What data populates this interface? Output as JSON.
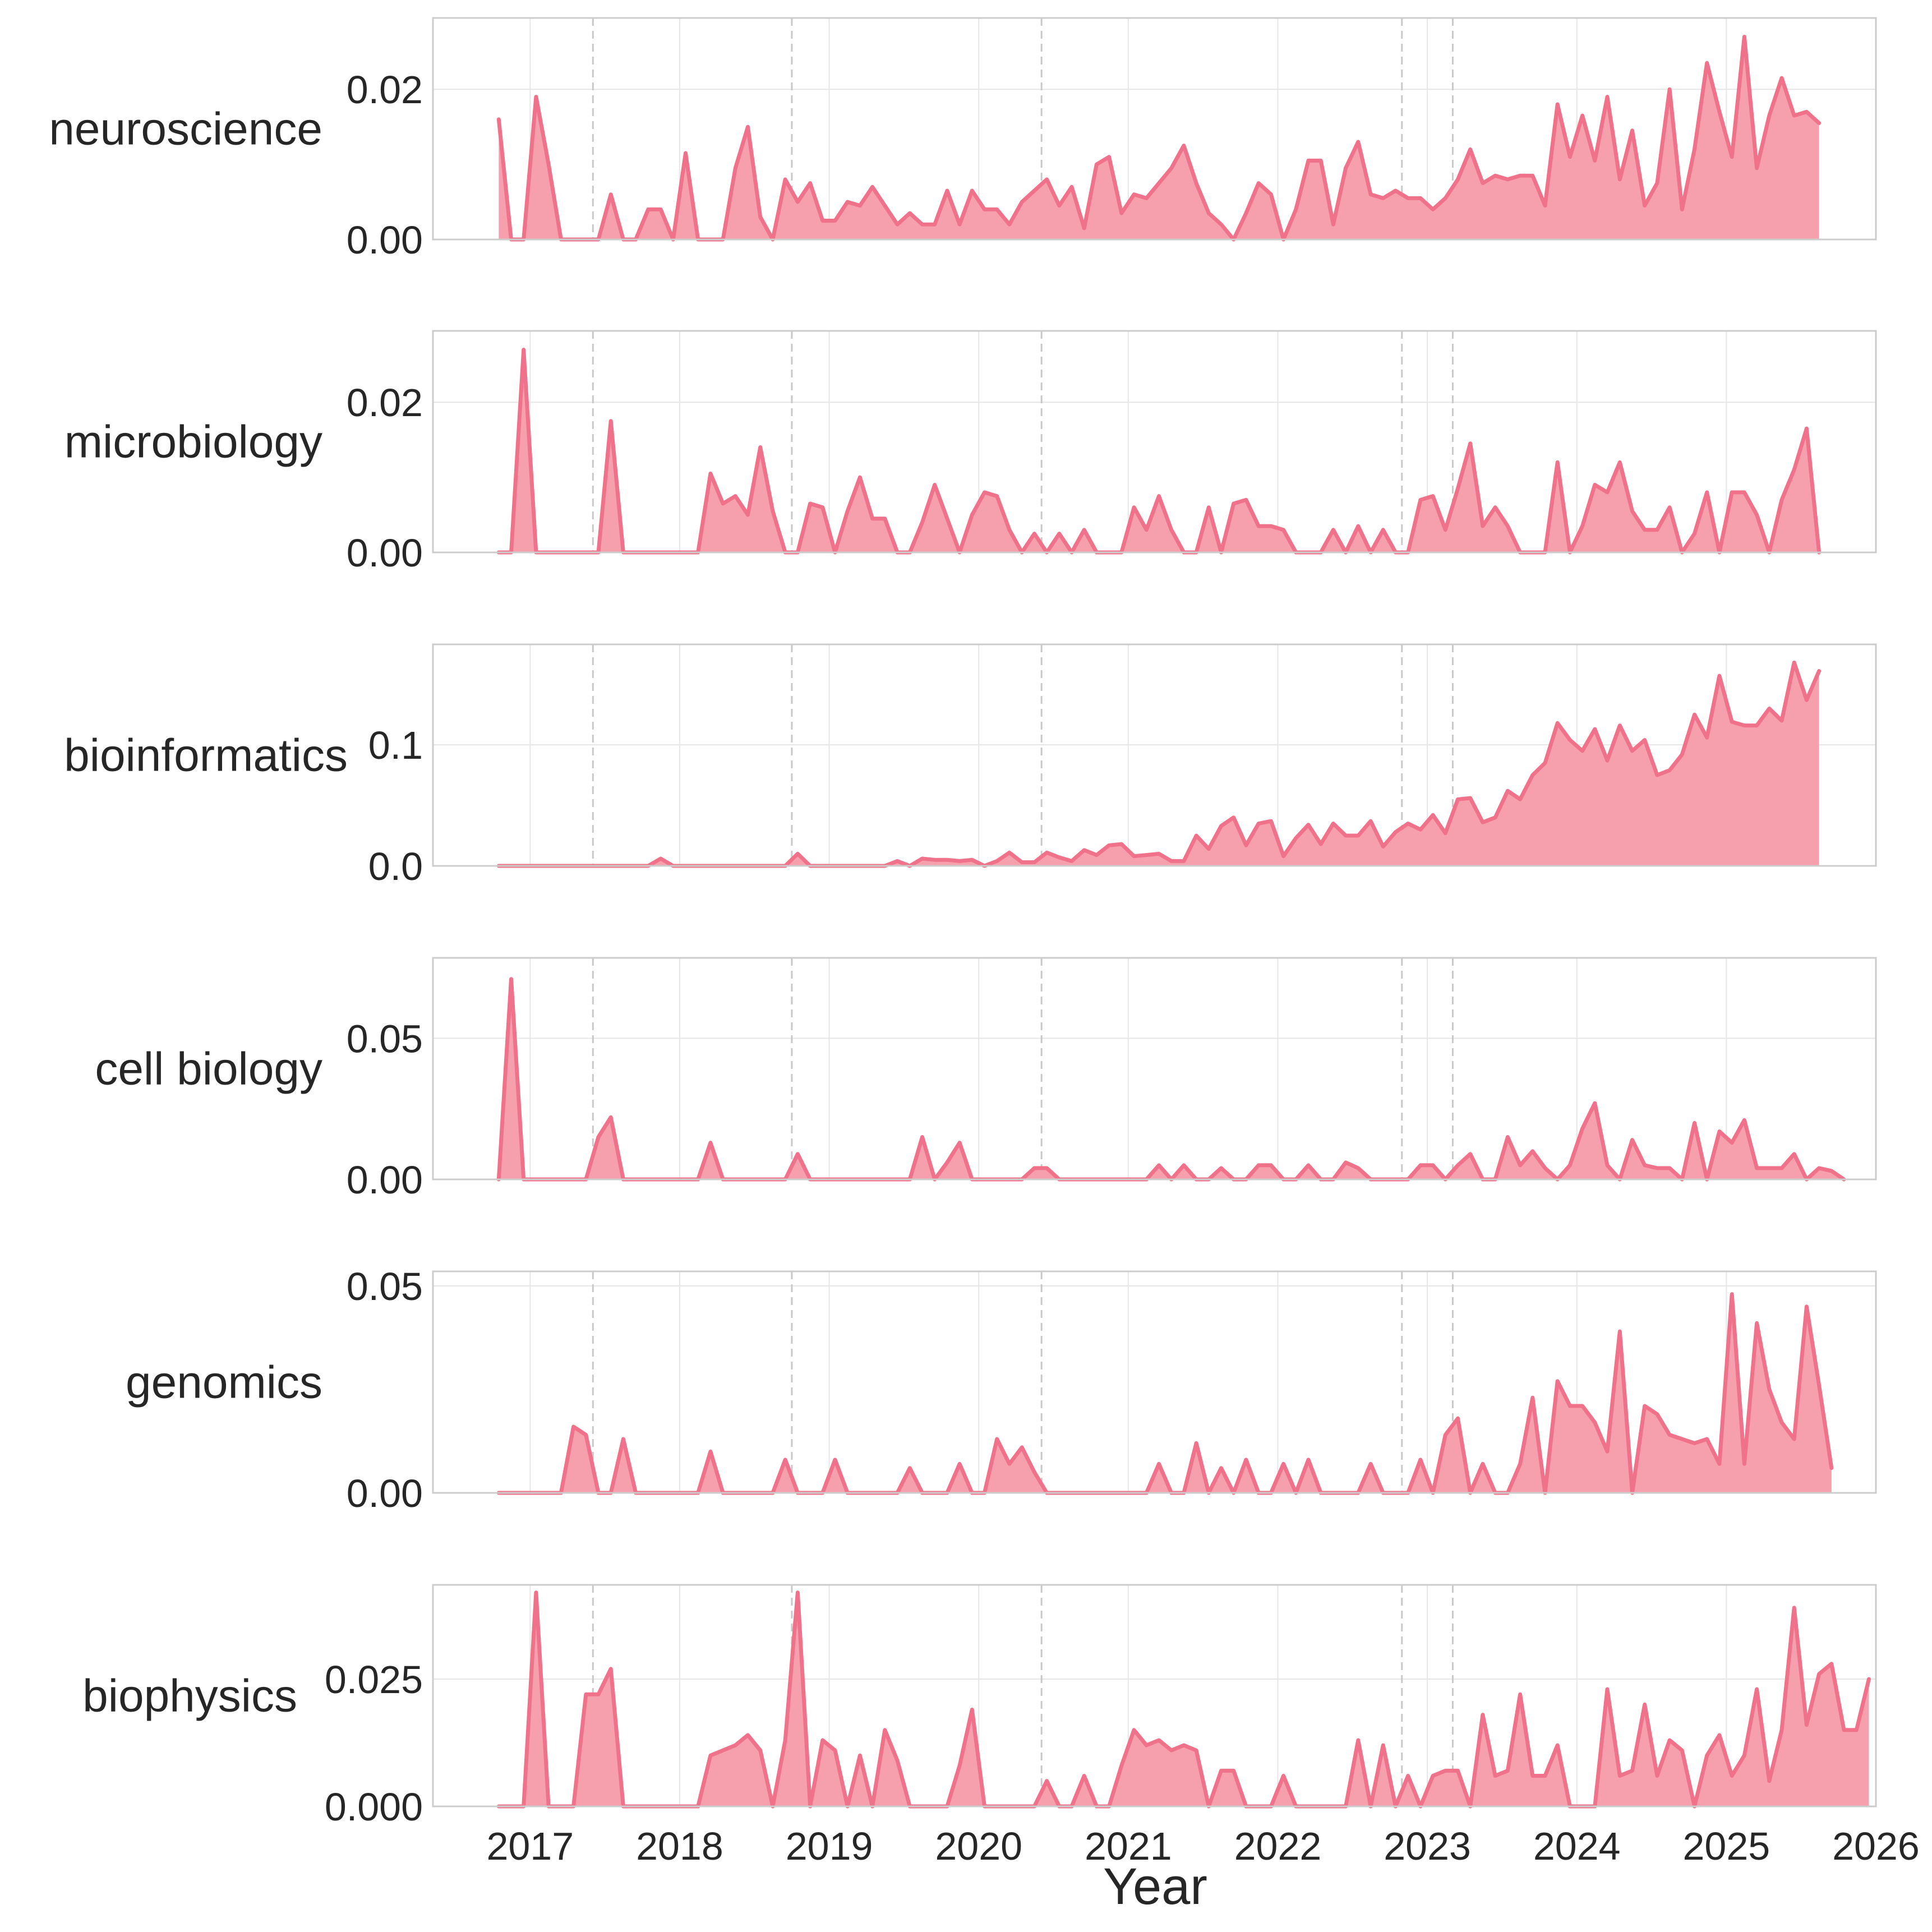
{
  "chart_data": {
    "type": "area",
    "xlabel": "Year",
    "x_range": [
      2016.35,
      2026.0
    ],
    "x_ticks": [
      2017,
      2018,
      2019,
      2020,
      2021,
      2022,
      2023,
      2024,
      2025,
      2026
    ],
    "event_lines": [
      2017.42,
      2018.75,
      2020.42,
      2022.83,
      2023.17
    ],
    "x_start": 2016.79,
    "x_step": 0.0833,
    "colors": {
      "line": "#f0728a",
      "fill": "#f7a0ad"
    },
    "panels": [
      {
        "label": "neuroscience",
        "ylim": [
          0,
          0.0295
        ],
        "y_ticks": [
          0.0,
          0.02
        ],
        "y_tick_labels": [
          "0.00",
          "0.02"
        ],
        "values": [
          0.016,
          0.0,
          0.0,
          0.019,
          0.01,
          0.0,
          0.0,
          0.0,
          0.0,
          0.006,
          0.0,
          0.0,
          0.004,
          0.004,
          0.0,
          0.0115,
          0.0,
          0.0,
          0.0,
          0.0095,
          0.015,
          0.003,
          0.0,
          0.008,
          0.005,
          0.0075,
          0.0025,
          0.0025,
          0.005,
          0.0045,
          0.007,
          0.0045,
          0.002,
          0.0035,
          0.002,
          0.002,
          0.0065,
          0.002,
          0.0065,
          0.004,
          0.004,
          0.002,
          0.005,
          0.0065,
          0.008,
          0.0045,
          0.007,
          0.0015,
          0.01,
          0.011,
          0.0035,
          0.006,
          0.0055,
          0.0075,
          0.0095,
          0.0125,
          0.0075,
          0.0035,
          0.002,
          0.0,
          0.0035,
          0.0075,
          0.006,
          0.0,
          0.004,
          0.0105,
          0.0105,
          0.002,
          0.0095,
          0.013,
          0.006,
          0.0055,
          0.0065,
          0.0055,
          0.0055,
          0.004,
          0.0055,
          0.008,
          0.012,
          0.0075,
          0.0085,
          0.008,
          0.0085,
          0.0085,
          0.0045,
          0.018,
          0.011,
          0.0165,
          0.0105,
          0.019,
          0.008,
          0.0145,
          0.0045,
          0.0075,
          0.02,
          0.004,
          0.012,
          0.0235,
          0.017,
          0.011,
          0.027,
          0.0095,
          0.0165,
          0.0215,
          0.0165,
          0.017,
          0.0155
        ]
      },
      {
        "label": "microbiology",
        "ylim": [
          0,
          0.0295
        ],
        "y_ticks": [
          0.0,
          0.02
        ],
        "y_tick_labels": [
          "0.00",
          "0.02"
        ],
        "values": [
          0.0,
          0.0,
          0.027,
          0.0,
          0.0,
          0.0,
          0.0,
          0.0,
          0.0,
          0.0175,
          0.0,
          0.0,
          0.0,
          0.0,
          0.0,
          0.0,
          0.0,
          0.0105,
          0.0065,
          0.0075,
          0.005,
          0.014,
          0.0055,
          0.0,
          0.0,
          0.0065,
          0.006,
          0.0,
          0.0055,
          0.01,
          0.0045,
          0.0045,
          0.0,
          0.0,
          0.004,
          0.009,
          0.0045,
          0.0,
          0.005,
          0.008,
          0.0075,
          0.003,
          0.0,
          0.0025,
          0.0,
          0.0025,
          0.0,
          0.003,
          0.0,
          0.0,
          0.0,
          0.006,
          0.003,
          0.0075,
          0.003,
          0.0,
          0.0,
          0.006,
          0.0,
          0.0065,
          0.007,
          0.0035,
          0.0035,
          0.003,
          0.0,
          0.0,
          0.0,
          0.003,
          0.0,
          0.0035,
          0.0,
          0.003,
          0.0,
          0.0,
          0.007,
          0.0075,
          0.003,
          0.0085,
          0.0145,
          0.0035,
          0.006,
          0.0035,
          0.0,
          0.0,
          0.0,
          0.012,
          0.0,
          0.0035,
          0.009,
          0.008,
          0.012,
          0.0055,
          0.003,
          0.003,
          0.006,
          0.0,
          0.0025,
          0.008,
          0.0,
          0.008,
          0.008,
          0.005,
          0.0,
          0.007,
          0.011,
          0.0165,
          0.0
        ]
      },
      {
        "label": "bioinformatics",
        "ylim": [
          0,
          0.183
        ],
        "y_ticks": [
          0.0,
          0.1
        ],
        "y_tick_labels": [
          "0.0",
          "0.1"
        ],
        "values": [
          0.0,
          0.0,
          0.0,
          0.0,
          0.0,
          0.0,
          0.0,
          0.0,
          0.0,
          0.0,
          0.0,
          0.0,
          0.0,
          0.006,
          0.0,
          0.0,
          0.0,
          0.0,
          0.0,
          0.0,
          0.0,
          0.0,
          0.0,
          0.0,
          0.01,
          0.0,
          0.0,
          0.0,
          0.0,
          0.0,
          0.0,
          0.0,
          0.004,
          0.0,
          0.006,
          0.005,
          0.005,
          0.004,
          0.005,
          0.0,
          0.004,
          0.011,
          0.003,
          0.003,
          0.011,
          0.007,
          0.004,
          0.013,
          0.009,
          0.017,
          0.018,
          0.008,
          0.009,
          0.01,
          0.004,
          0.004,
          0.025,
          0.014,
          0.033,
          0.04,
          0.017,
          0.035,
          0.037,
          0.008,
          0.023,
          0.034,
          0.018,
          0.035,
          0.025,
          0.025,
          0.037,
          0.016,
          0.028,
          0.035,
          0.03,
          0.042,
          0.027,
          0.055,
          0.056,
          0.036,
          0.04,
          0.062,
          0.055,
          0.075,
          0.085,
          0.118,
          0.104,
          0.095,
          0.113,
          0.087,
          0.116,
          0.095,
          0.104,
          0.075,
          0.079,
          0.092,
          0.125,
          0.106,
          0.157,
          0.119,
          0.116,
          0.116,
          0.13,
          0.12,
          0.168,
          0.137,
          0.161
        ]
      },
      {
        "label": "cell biology",
        "ylim": [
          0,
          0.0785
        ],
        "y_ticks": [
          0.0,
          0.05
        ],
        "y_tick_labels": [
          "0.00",
          "0.05"
        ],
        "values": [
          0.0,
          0.071,
          0.0,
          0.0,
          0.0,
          0.0,
          0.0,
          0.0,
          0.015,
          0.022,
          0.0,
          0.0,
          0.0,
          0.0,
          0.0,
          0.0,
          0.0,
          0.013,
          0.0,
          0.0,
          0.0,
          0.0,
          0.0,
          0.0,
          0.009,
          0.0,
          0.0,
          0.0,
          0.0,
          0.0,
          0.0,
          0.0,
          0.0,
          0.0,
          0.015,
          0.0,
          0.006,
          0.013,
          0.0,
          0.0,
          0.0,
          0.0,
          0.0,
          0.004,
          0.004,
          0.0,
          0.0,
          0.0,
          0.0,
          0.0,
          0.0,
          0.0,
          0.0,
          0.005,
          0.0,
          0.005,
          0.0,
          0.0,
          0.004,
          0.0,
          0.0,
          0.005,
          0.005,
          0.0,
          0.0,
          0.005,
          0.0,
          0.0,
          0.006,
          0.004,
          0.0,
          0.0,
          0.0,
          0.0,
          0.005,
          0.005,
          0.0,
          0.005,
          0.009,
          0.0,
          0.0,
          0.015,
          0.005,
          0.01,
          0.004,
          0.0,
          0.005,
          0.018,
          0.027,
          0.005,
          0.0,
          0.014,
          0.005,
          0.004,
          0.004,
          0.0,
          0.02,
          0.0,
          0.017,
          0.013,
          0.021,
          0.004,
          0.004,
          0.004,
          0.009,
          0.0,
          0.004,
          0.003,
          0.0
        ]
      },
      {
        "label": "genomics",
        "ylim": [
          0,
          0.0535
        ],
        "y_ticks": [
          0.0,
          0.05
        ],
        "y_tick_labels": [
          "0.00",
          "0.05"
        ],
        "values": [
          0.0,
          0.0,
          0.0,
          0.0,
          0.0,
          0.0,
          0.016,
          0.014,
          0.0,
          0.0,
          0.013,
          0.0,
          0.0,
          0.0,
          0.0,
          0.0,
          0.0,
          0.01,
          0.0,
          0.0,
          0.0,
          0.0,
          0.0,
          0.008,
          0.0,
          0.0,
          0.0,
          0.008,
          0.0,
          0.0,
          0.0,
          0.0,
          0.0,
          0.006,
          0.0,
          0.0,
          0.0,
          0.007,
          0.0,
          0.0,
          0.013,
          0.007,
          0.011,
          0.005,
          0.0,
          0.0,
          0.0,
          0.0,
          0.0,
          0.0,
          0.0,
          0.0,
          0.0,
          0.007,
          0.0,
          0.0,
          0.012,
          0.0,
          0.006,
          0.0,
          0.008,
          0.0,
          0.0,
          0.007,
          0.0,
          0.008,
          0.0,
          0.0,
          0.0,
          0.0,
          0.007,
          0.0,
          0.0,
          0.0,
          0.008,
          0.0,
          0.014,
          0.018,
          0.0,
          0.007,
          0.0,
          0.0,
          0.007,
          0.023,
          0.0,
          0.027,
          0.021,
          0.021,
          0.017,
          0.01,
          0.039,
          0.0,
          0.021,
          0.019,
          0.014,
          0.013,
          0.012,
          0.013,
          0.007,
          0.048,
          0.007,
          0.041,
          0.025,
          0.017,
          0.013,
          0.045,
          0.026,
          0.006
        ]
      },
      {
        "label": "biophysics",
        "ylim": [
          0,
          0.0435
        ],
        "y_ticks": [
          0.0,
          0.025
        ],
        "y_tick_labels": [
          "0.000",
          "0.025"
        ],
        "values": [
          0.0,
          0.0,
          0.0,
          0.042,
          0.0,
          0.0,
          0.0,
          0.022,
          0.022,
          0.027,
          0.0,
          0.0,
          0.0,
          0.0,
          0.0,
          0.0,
          0.0,
          0.01,
          0.011,
          0.012,
          0.014,
          0.011,
          0.0,
          0.013,
          0.042,
          0.0,
          0.013,
          0.011,
          0.0,
          0.01,
          0.0,
          0.015,
          0.009,
          0.0,
          0.0,
          0.0,
          0.0,
          0.008,
          0.019,
          0.0,
          0.0,
          0.0,
          0.0,
          0.0,
          0.005,
          0.0,
          0.0,
          0.006,
          0.0,
          0.0,
          0.008,
          0.015,
          0.012,
          0.013,
          0.011,
          0.012,
          0.011,
          0.0,
          0.007,
          0.007,
          0.0,
          0.0,
          0.0,
          0.006,
          0.0,
          0.0,
          0.0,
          0.0,
          0.0,
          0.013,
          0.0,
          0.012,
          0.0,
          0.006,
          0.0,
          0.006,
          0.007,
          0.007,
          0.0,
          0.018,
          0.006,
          0.007,
          0.022,
          0.006,
          0.006,
          0.012,
          0.0,
          0.0,
          0.0,
          0.023,
          0.006,
          0.007,
          0.02,
          0.006,
          0.013,
          0.011,
          0.0,
          0.01,
          0.014,
          0.006,
          0.01,
          0.023,
          0.005,
          0.015,
          0.039,
          0.016,
          0.026,
          0.028,
          0.015,
          0.015,
          0.025
        ]
      }
    ]
  }
}
